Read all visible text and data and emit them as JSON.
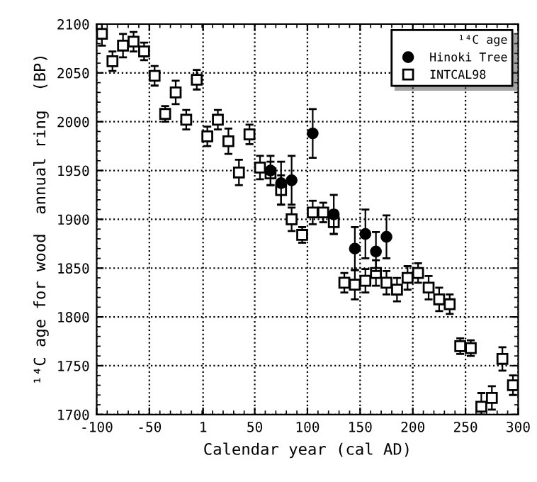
{
  "chart_data": {
    "type": "scatter",
    "xlabel": "Calendar year (cal AD)",
    "ylabel": "¹⁴C age for wood  annual ring  (BP)",
    "legend_title": "¹⁴C age",
    "xlim": [
      -100,
      300
    ],
    "xticks": [
      -100,
      -50,
      1,
      50,
      100,
      150,
      200,
      250,
      300
    ],
    "ylim": [
      1700,
      2100
    ],
    "yticks": [
      1700,
      1750,
      1800,
      1850,
      1900,
      1950,
      2000,
      2050,
      2100
    ],
    "grid": true,
    "legend": "top right",
    "series": [
      {
        "name": "Hinoki Tree",
        "color": "#000000",
        "marker": "circle",
        "x": [
          65,
          75,
          85,
          105,
          125,
          145,
          155,
          165,
          175
        ],
        "values": [
          1950,
          1937,
          1940,
          1988,
          1905,
          1870,
          1885,
          1867,
          1882
        ],
        "errors": [
          15,
          22,
          25,
          25,
          20,
          22,
          25,
          20,
          22
        ]
      },
      {
        "name": "INTCAL98",
        "color": "#000000",
        "marker": "square",
        "x": [
          -95,
          -85,
          -75,
          -65,
          -55,
          -45,
          -35,
          -25,
          -15,
          -5,
          5,
          15,
          25,
          35,
          45,
          55,
          65,
          75,
          85,
          95,
          105,
          115,
          125,
          135,
          145,
          155,
          165,
          175,
          185,
          195,
          205,
          215,
          225,
          235,
          245,
          255,
          265,
          275,
          285,
          295
        ],
        "values": [
          2090,
          2062,
          2078,
          2082,
          2072,
          2047,
          2008,
          2030,
          2002,
          2043,
          1985,
          2002,
          1980,
          1948,
          1987,
          1953,
          1947,
          1930,
          1900,
          1884,
          1907,
          1907,
          1897,
          1835,
          1833,
          1837,
          1845,
          1835,
          1828,
          1840,
          1845,
          1830,
          1818,
          1813,
          1770,
          1768,
          1708,
          1717,
          1757,
          1730
        ],
        "errors": [
          12,
          10,
          12,
          10,
          9,
          10,
          8,
          12,
          10,
          10,
          10,
          10,
          13,
          13,
          10,
          12,
          12,
          15,
          12,
          8,
          12,
          10,
          12,
          10,
          15,
          12,
          13,
          12,
          12,
          12,
          10,
          12,
          12,
          10,
          8,
          8,
          [
            1700,
            1722
          ],
          12,
          12,
          10
        ]
      }
    ]
  }
}
